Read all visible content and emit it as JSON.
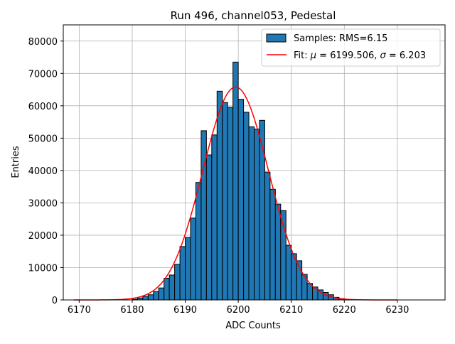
{
  "chart_data": {
    "type": "bar",
    "title": "Run 496, channel053, Pedestal",
    "xlabel": "ADC Counts",
    "ylabel": "Entries",
    "xlim": [
      6167,
      6239
    ],
    "ylim": [
      0,
      85000
    ],
    "xticks": [
      6170,
      6180,
      6190,
      6200,
      6210,
      6220,
      6230
    ],
    "yticks": [
      0,
      10000,
      20000,
      30000,
      40000,
      50000,
      60000,
      70000,
      80000
    ],
    "grid": true,
    "legend_position": "top-right",
    "bin_width": 1,
    "colors": {
      "bar": "#1f77b4",
      "fit": "#ff0000",
      "grid": "#b0b0b0"
    },
    "series": [
      {
        "name": "Samples: RMS=6.15",
        "kind": "histogram",
        "x": [
          6180,
          6181,
          6182,
          6183,
          6184,
          6185,
          6186,
          6187,
          6188,
          6189,
          6190,
          6191,
          6192,
          6193,
          6194,
          6195,
          6196,
          6197,
          6198,
          6199,
          6200,
          6201,
          6202,
          6203,
          6204,
          6205,
          6206,
          6207,
          6208,
          6209,
          6210,
          6211,
          6212,
          6213,
          6214,
          6215,
          6216,
          6217,
          6218,
          6219
        ],
        "values": [
          200,
          600,
          1100,
          1600,
          2600,
          3700,
          6700,
          7700,
          11000,
          16500,
          19300,
          25300,
          36300,
          52300,
          44800,
          51000,
          64500,
          61000,
          59500,
          73500,
          62000,
          58000,
          53500,
          52800,
          55500,
          39500,
          34200,
          29600,
          27600,
          16900,
          14300,
          12100,
          7900,
          5100,
          4000,
          3100,
          2300,
          1600,
          800,
          400
        ]
      },
      {
        "name": "Fit: μ = 6199.506, σ = 6.203",
        "legend_label": "Fit: μ = 6199.506, σ = 6.203",
        "legend_prefix": "Fit: ",
        "legend_mu_symbol": "μ",
        "legend_mu_value": " = 6199.506, ",
        "legend_sigma_symbol": "σ",
        "legend_sigma_value": " = 6.203",
        "kind": "gaussian",
        "mu": 6199.506,
        "sigma": 6.203,
        "amplitude": 65800,
        "x_range": [
          6169,
          6230
        ]
      }
    ]
  }
}
